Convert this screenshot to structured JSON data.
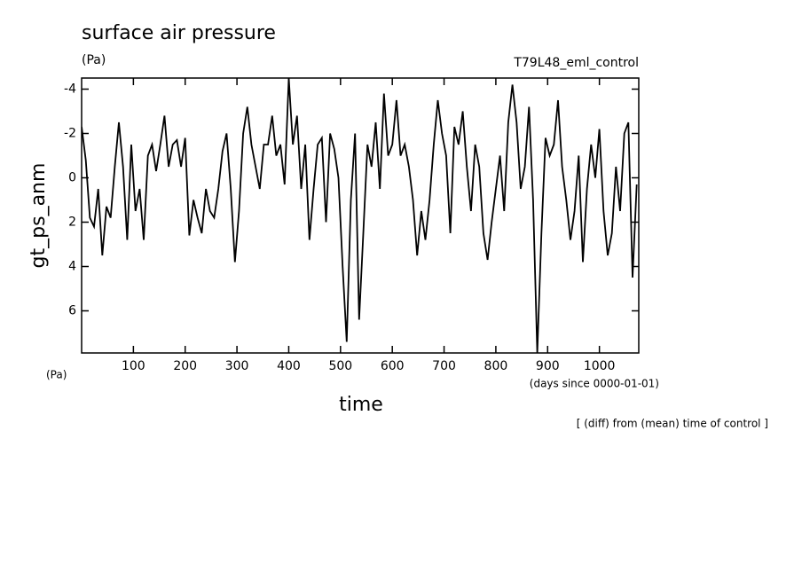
{
  "chart_data": {
    "type": "line",
    "title": "surface air pressure",
    "units": "(Pa)",
    "subtitle": "T79L48_eml_control",
    "ylabel": "gt_ps_anm",
    "yunits": "(Pa)",
    "xlabel": "time",
    "xunits": "(days since 0000-01-01)",
    "note": "[ (diff) from (mean) time of control ]",
    "xlim": [
      0,
      1076
    ],
    "xticks": [
      100,
      200,
      300,
      400,
      500,
      600,
      700,
      800,
      900,
      1000
    ],
    "ylim": [
      -4.5,
      7.9
    ],
    "yticks": [
      -4,
      -2,
      0,
      2,
      4,
      6
    ],
    "y_inverted": true,
    "color": "#000000",
    "x": [
      0,
      8,
      16,
      24,
      32,
      40,
      48,
      56,
      64,
      72,
      80,
      88,
      96,
      104,
      112,
      120,
      128,
      136,
      144,
      152,
      160,
      168,
      176,
      184,
      192,
      200,
      208,
      216,
      224,
      232,
      240,
      248,
      256,
      264,
      272,
      280,
      288,
      296,
      304,
      312,
      320,
      328,
      336,
      344,
      352,
      360,
      368,
      376,
      384,
      392,
      400,
      408,
      416,
      424,
      432,
      440,
      448,
      456,
      464,
      472,
      480,
      488,
      496,
      504,
      512,
      520,
      528,
      536,
      544,
      552,
      560,
      568,
      576,
      584,
      592,
      600,
      608,
      616,
      624,
      632,
      640,
      648,
      656,
      664,
      672,
      680,
      688,
      696,
      704,
      712,
      720,
      728,
      736,
      744,
      752,
      760,
      768,
      776,
      784,
      792,
      800,
      808,
      816,
      824,
      832,
      840,
      848,
      856,
      864,
      872,
      880,
      888,
      896,
      904,
      912,
      920,
      928,
      936,
      944,
      952,
      960,
      968,
      976,
      984,
      992,
      1000,
      1008,
      1016,
      1024,
      1032,
      1040,
      1048,
      1056,
      1064,
      1072
    ],
    "values": [
      -2.3,
      -0.8,
      1.8,
      2.2,
      0.5,
      3.5,
      1.3,
      1.8,
      -0.5,
      -2.5,
      -0.5,
      2.8,
      -1.5,
      1.5,
      0.5,
      2.8,
      -1,
      -1.5,
      -0.3,
      -1.5,
      -2.8,
      -0.5,
      -1.5,
      -1.7,
      -0.5,
      -1.8,
      2.6,
      1.0,
      1.8,
      2.5,
      0.5,
      1.5,
      1.8,
      0.5,
      -1.2,
      -2,
      0.5,
      3.8,
      1.5,
      -2,
      -3.2,
      -1.5,
      -0.5,
      0.5,
      -1.5,
      -1.5,
      -2.8,
      -1,
      -1.5,
      0.3,
      -4.5,
      -1.5,
      -2.8,
      0.5,
      -1.5,
      2.8,
      0.5,
      -1.5,
      -1.8,
      2,
      -2,
      -1.3,
      0,
      4,
      7.4,
      1,
      -2,
      6.4,
      2.5,
      -1.5,
      -0.5,
      -2.5,
      0.5,
      -3.8,
      -1,
      -1.5,
      -3.5,
      -1,
      -1.5,
      -0.5,
      1,
      3.5,
      1.5,
      2.8,
      1,
      -1.5,
      -3.5,
      -2,
      -1,
      2.5,
      -2.3,
      -1.5,
      -3,
      -0.5,
      1.5,
      -1.5,
      -0.5,
      2.5,
      3.7,
      2,
      0.5,
      -1,
      1.5,
      -2.5,
      -4.2,
      -2.5,
      0.5,
      -0.5,
      -3.2,
      1,
      7.9,
      2.5,
      -1.8,
      -1,
      -1.5,
      -3.5,
      -0.5,
      1,
      2.8,
      1.5,
      -1,
      3.8,
      0.5,
      -1.5,
      0,
      -2.2,
      1.5,
      3.5,
      2.5,
      -0.5,
      1.5,
      -2,
      -2.5,
      4.5,
      0.3
    ]
  }
}
